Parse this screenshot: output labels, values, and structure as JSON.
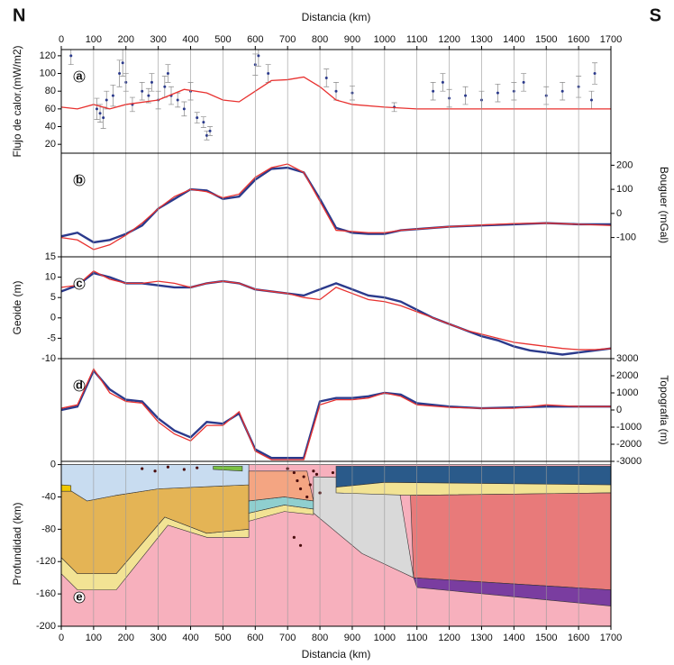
{
  "chart_data": [
    {
      "type": "line",
      "label": "a",
      "annotations": [
        "N",
        "S"
      ],
      "xlabel": "Distancia (km)",
      "xaxis": "top",
      "ylabel": "Flujo de calor.(mW/m2)",
      "yaxis": "left",
      "xlim": [
        0,
        1700
      ],
      "xticks": [
        0,
        100,
        200,
        300,
        400,
        500,
        600,
        700,
        800,
        900,
        1000,
        1100,
        1200,
        1300,
        1400,
        1500,
        1600,
        1700
      ],
      "ylim": [
        10,
        127
      ],
      "yticks": [
        20,
        40,
        60,
        80,
        100,
        120
      ],
      "series": [
        {
          "color": "#2b3a8c",
          "x": [
            30,
            110,
            120,
            130,
            140,
            160,
            180,
            190,
            200,
            220,
            250,
            270,
            280,
            300,
            320,
            330,
            340,
            360,
            380,
            400,
            420,
            440,
            450,
            460,
            600,
            610,
            640,
            820,
            850,
            900,
            1030,
            1150,
            1180,
            1200,
            1250,
            1300,
            1350,
            1400,
            1430,
            1500,
            1550,
            1600,
            1640,
            1650
          ],
          "values": [
            120,
            60,
            55,
            50,
            70,
            75,
            100,
            112,
            90,
            65,
            80,
            75,
            90,
            70,
            85,
            100,
            75,
            70,
            60,
            80,
            50,
            45,
            30,
            35,
            110,
            120,
            100,
            95,
            80,
            78,
            62,
            80,
            90,
            72,
            75,
            70,
            78,
            80,
            90,
            75,
            80,
            85,
            70,
            100
          ],
          "errors": [
            10,
            12,
            10,
            12,
            10,
            12,
            15,
            15,
            10,
            8,
            10,
            8,
            10,
            10,
            12,
            10,
            10,
            8,
            8,
            10,
            6,
            6,
            5,
            5,
            12,
            12,
            10,
            10,
            10,
            8,
            5,
            10,
            10,
            10,
            10,
            10,
            10,
            10,
            10,
            10,
            10,
            12,
            10,
            12
          ]
        },
        {
          "color": "#e8312f",
          "x": [
            0,
            50,
            100,
            150,
            200,
            300,
            380,
            450,
            500,
            550,
            600,
            650,
            700,
            750,
            800,
            850,
            900,
            1000,
            1100,
            1300,
            1500,
            1700
          ],
          "values": [
            62,
            60,
            65,
            60,
            65,
            70,
            82,
            78,
            70,
            68,
            80,
            92,
            93,
            96,
            85,
            70,
            65,
            62,
            60,
            60,
            60,
            60
          ]
        }
      ]
    },
    {
      "type": "line",
      "label": "b",
      "ylabel": "Bouguer (mGal)",
      "yaxis": "right",
      "xlim": [
        0,
        1700
      ],
      "xticks": [
        0,
        100,
        200,
        300,
        400,
        500,
        600,
        700,
        800,
        900,
        1000,
        1100,
        1200,
        1300,
        1400,
        1500,
        1600,
        1700
      ],
      "ylim": [
        -180,
        250
      ],
      "yticks": [
        -100,
        0,
        100,
        200
      ],
      "series": [
        {
          "color": "#2b3a8c",
          "x": [
            0,
            50,
            100,
            150,
            200,
            250,
            300,
            350,
            400,
            450,
            500,
            550,
            600,
            650,
            700,
            750,
            800,
            850,
            900,
            950,
            1000,
            1050,
            1100,
            1200,
            1300,
            1400,
            1500,
            1600,
            1700
          ],
          "values": [
            -95,
            -80,
            -120,
            -110,
            -85,
            -50,
            20,
            60,
            100,
            95,
            60,
            70,
            140,
            185,
            190,
            170,
            60,
            -60,
            -80,
            -85,
            -85,
            -70,
            -65,
            -55,
            -50,
            -45,
            -40,
            -45,
            -45
          ]
        },
        {
          "color": "#e8312f",
          "x": [
            0,
            50,
            100,
            150,
            200,
            250,
            300,
            350,
            400,
            450,
            500,
            550,
            600,
            650,
            700,
            750,
            800,
            850,
            900,
            950,
            1000,
            1050,
            1100,
            1200,
            1300,
            1400,
            1500,
            1600,
            1700
          ],
          "values": [
            -100,
            -110,
            -150,
            -130,
            -90,
            -40,
            20,
            70,
            100,
            90,
            65,
            80,
            150,
            190,
            205,
            170,
            50,
            -70,
            -75,
            -80,
            -80,
            -70,
            -65,
            -55,
            -48,
            -42,
            -40,
            -45,
            -50
          ]
        }
      ]
    },
    {
      "type": "line",
      "label": "c",
      "ylabel": "Geoide (m)",
      "yaxis": "left",
      "xlim": [
        0,
        1700
      ],
      "xticks": [
        0,
        100,
        200,
        300,
        400,
        500,
        600,
        700,
        800,
        900,
        1000,
        1100,
        1200,
        1300,
        1400,
        1500,
        1600,
        1700
      ],
      "ylim": [
        -10,
        15
      ],
      "yticks": [
        -10,
        -5,
        0,
        5,
        10,
        15
      ],
      "series": [
        {
          "color": "#2b3a8c",
          "x": [
            0,
            50,
            100,
            150,
            200,
            250,
            300,
            350,
            400,
            450,
            500,
            550,
            600,
            650,
            700,
            750,
            800,
            850,
            900,
            950,
            1000,
            1050,
            1100,
            1150,
            1200,
            1250,
            1300,
            1350,
            1400,
            1450,
            1500,
            1550,
            1600,
            1650,
            1700
          ],
          "values": [
            6.5,
            8,
            11,
            10,
            8.5,
            8.5,
            8,
            7.5,
            7.5,
            8.5,
            9,
            8.5,
            7,
            6.5,
            6,
            5.5,
            7,
            8.5,
            7,
            5.5,
            5,
            4,
            2,
            0,
            -1.5,
            -3,
            -4.5,
            -5.5,
            -7,
            -8,
            -8.5,
            -9,
            -8.5,
            -8,
            -7.5
          ]
        },
        {
          "color": "#e8312f",
          "x": [
            0,
            50,
            100,
            150,
            200,
            250,
            300,
            350,
            400,
            450,
            500,
            550,
            600,
            650,
            700,
            750,
            800,
            850,
            900,
            950,
            1000,
            1050,
            1100,
            1150,
            1200,
            1250,
            1300,
            1350,
            1400,
            1450,
            1500,
            1550,
            1600,
            1650,
            1700
          ],
          "values": [
            7.5,
            8,
            11.5,
            9.5,
            8.5,
            8.5,
            9,
            8.5,
            7.5,
            8.5,
            9,
            8.5,
            7,
            6.5,
            6,
            5,
            4.5,
            7.5,
            6,
            4.5,
            4,
            3,
            1.5,
            0,
            -1.5,
            -3,
            -4,
            -5,
            -6,
            -6.5,
            -7,
            -7.5,
            -7.8,
            -7.8,
            -7.5
          ]
        }
      ]
    },
    {
      "type": "line",
      "label": "d",
      "ylabel": "Topografia (m)",
      "yaxis": "right",
      "xlim": [
        0,
        1700
      ],
      "xticks": [
        0,
        100,
        200,
        300,
        400,
        500,
        600,
        700,
        800,
        900,
        1000,
        1100,
        1200,
        1300,
        1400,
        1500,
        1600,
        1700
      ],
      "ylim": [
        -3000,
        3000
      ],
      "yticks": [
        -3000,
        -2000,
        -1000,
        0,
        1000,
        2000,
        3000
      ],
      "series": [
        {
          "color": "#2b3a8c",
          "x": [
            0,
            50,
            100,
            150,
            200,
            250,
            300,
            350,
            400,
            450,
            500,
            550,
            600,
            650,
            700,
            750,
            800,
            850,
            900,
            950,
            1000,
            1050,
            1100,
            1200,
            1300,
            1400,
            1500,
            1600,
            1700
          ],
          "values": [
            0,
            200,
            2300,
            1200,
            600,
            500,
            -500,
            -1200,
            -1600,
            -700,
            -800,
            -200,
            -2300,
            -2800,
            -2800,
            -2800,
            500,
            700,
            700,
            800,
            1000,
            900,
            400,
            200,
            100,
            150,
            200,
            200,
            200
          ]
        },
        {
          "color": "#e8312f",
          "x": [
            0,
            50,
            100,
            150,
            200,
            250,
            300,
            350,
            400,
            450,
            500,
            550,
            600,
            650,
            700,
            750,
            800,
            850,
            900,
            950,
            1000,
            1050,
            1100,
            1200,
            1300,
            1400,
            1500,
            1600,
            1700
          ],
          "values": [
            100,
            300,
            2400,
            1000,
            500,
            400,
            -700,
            -1400,
            -1800,
            -900,
            -900,
            -100,
            -2400,
            -2900,
            -2900,
            -2900,
            300,
            600,
            600,
            700,
            1000,
            800,
            300,
            150,
            100,
            100,
            300,
            200,
            200
          ]
        }
      ]
    },
    {
      "type": "area",
      "label": "e",
      "xlabel": "Distancia (km)",
      "xaxis": "bottom",
      "ylabel": "Profundidad (km)",
      "yaxis": "left",
      "xlim": [
        0,
        1700
      ],
      "xticks": [
        0,
        100,
        200,
        300,
        400,
        500,
        600,
        700,
        800,
        900,
        1000,
        1100,
        1200,
        1300,
        1400,
        1500,
        1600,
        1700
      ],
      "ylim": [
        -200,
        4
      ],
      "yticks": [
        0,
        -40,
        -80,
        -120,
        -160,
        -200
      ],
      "layers": [
        {
          "color": "#f7b0bd",
          "x": [
            0,
            1700,
            1700,
            0
          ],
          "values": [
            -200,
            -200,
            0,
            0
          ]
        },
        {
          "color": "#f2e394",
          "x": [
            0,
            50,
            170,
            320,
            450,
            580,
            580,
            450,
            330,
            170,
            50,
            0
          ],
          "values": [
            -115,
            -135,
            -135,
            -65,
            -85,
            -80,
            -90,
            -90,
            -75,
            -155,
            -155,
            -135
          ]
        },
        {
          "color": "#e4b455",
          "x": [
            0,
            80,
            170,
            300,
            580,
            580,
            450,
            320,
            170,
            50,
            0
          ],
          "values": [
            -25,
            -45,
            -38,
            -30,
            -25,
            -80,
            -85,
            -65,
            -135,
            -135,
            -115
          ]
        },
        {
          "color": "#c8dcf0",
          "x": [
            0,
            580,
            580,
            300,
            170,
            80,
            0
          ],
          "values": [
            0,
            0,
            -25,
            -30,
            -38,
            -45,
            -25
          ]
        },
        {
          "color": "#f0c800",
          "x": [
            0,
            30,
            30,
            0
          ],
          "values": [
            -25,
            -26,
            -33,
            -33
          ]
        },
        {
          "color": "#7ac143",
          "x": [
            470,
            560,
            560,
            470
          ],
          "values": [
            -2,
            -2,
            -8,
            -6
          ]
        },
        {
          "color": "#f2e394",
          "x": [
            580,
            690,
            780,
            780,
            690,
            580
          ],
          "values": [
            -60,
            -50,
            -55,
            -62,
            -58,
            -70
          ]
        },
        {
          "color": "#8fcfcf",
          "x": [
            580,
            690,
            780,
            780,
            690,
            580
          ],
          "values": [
            -45,
            -40,
            -45,
            -55,
            -50,
            -60
          ]
        },
        {
          "color": "#f4a582",
          "x": [
            580,
            760,
            780,
            690,
            580
          ],
          "values": [
            -8,
            -8,
            -45,
            -40,
            -45
          ]
        },
        {
          "color": "#d9d9d9",
          "x": [
            780,
            1040,
            1090,
            930,
            780
          ],
          "values": [
            -15,
            -18,
            -140,
            -110,
            -60
          ]
        },
        {
          "color": "#2a5a8a",
          "x": [
            850,
            1700,
            1700,
            1000,
            850
          ],
          "values": [
            -2,
            -2,
            -25,
            -22,
            -28
          ]
        },
        {
          "color": "#f2e394",
          "x": [
            850,
            1000,
            1700,
            1700,
            1080,
            850
          ],
          "values": [
            -28,
            -22,
            -25,
            -35,
            -38,
            -35
          ]
        },
        {
          "color": "#e87a7a",
          "x": [
            1080,
            1700,
            1700,
            1090
          ],
          "values": [
            -38,
            -35,
            -155,
            -140
          ]
        },
        {
          "color": "#7a3da0",
          "x": [
            1090,
            1700,
            1700,
            1100
          ],
          "values": [
            -140,
            -155,
            -175,
            -152
          ]
        }
      ],
      "points": {
        "color": "#4a0d0d",
        "x": [
          250,
          290,
          330,
          380,
          420,
          700,
          720,
          730,
          740,
          750,
          760,
          770,
          780,
          790,
          800,
          720,
          740,
          840
        ],
        "values": [
          -5,
          -8,
          -3,
          -6,
          -4,
          -5,
          -10,
          -20,
          -30,
          -15,
          -40,
          -25,
          -8,
          -12,
          -35,
          -90,
          -100,
          -10
        ]
      }
    }
  ]
}
